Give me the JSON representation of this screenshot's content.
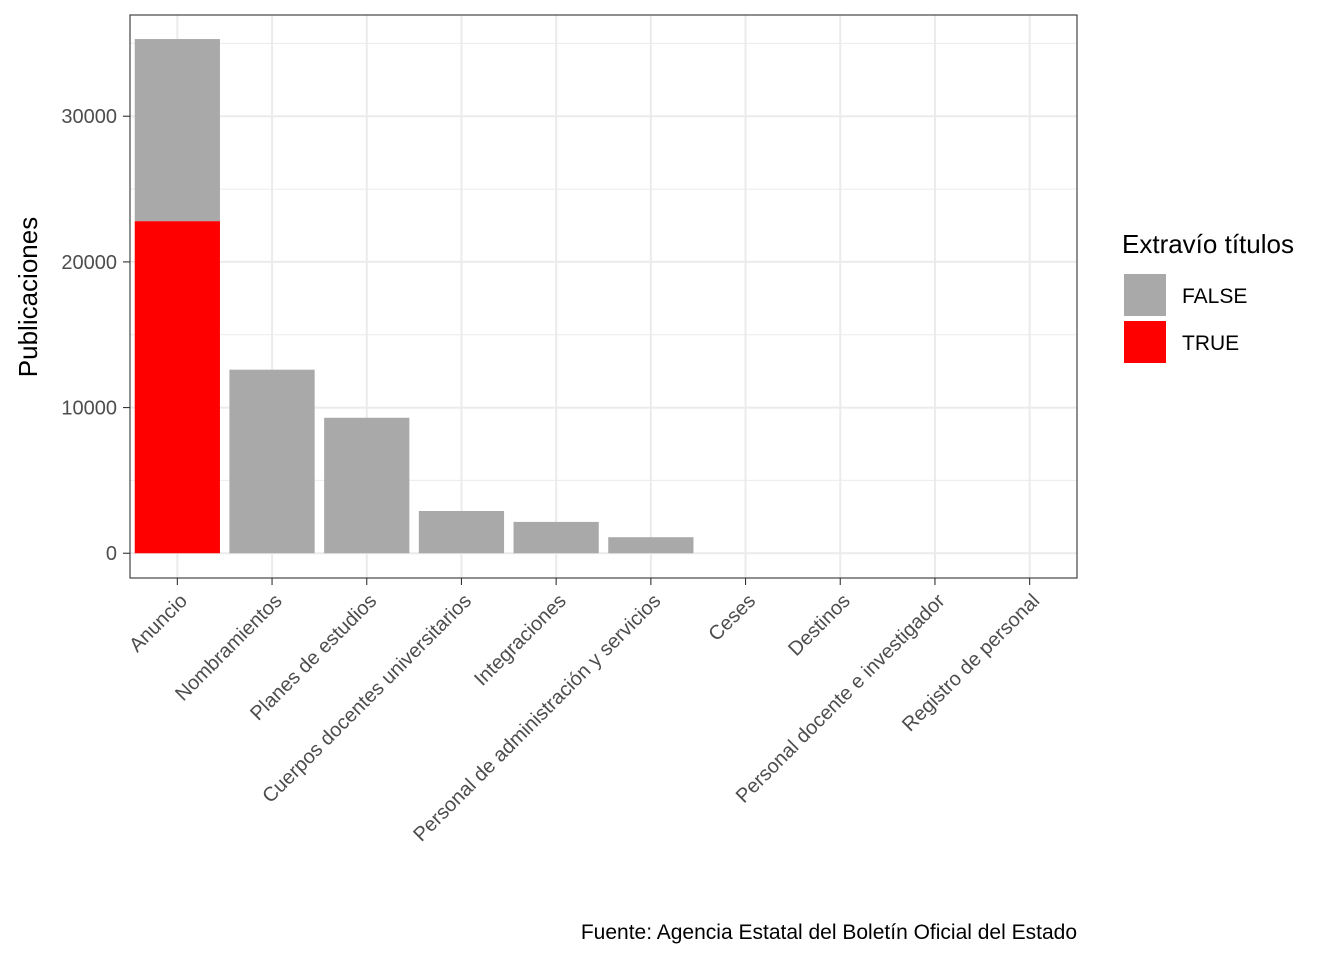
{
  "chart_data": {
    "type": "bar",
    "stacked": true,
    "ylabel": "Publicaciones",
    "xlabel": "",
    "categories": [
      "Anuncio",
      "Nombramientos",
      "Planes de estudios",
      "Cuerpos docentes universitarios",
      "Integraciones",
      "Personal de administración y servicios",
      "Ceses",
      "Destinos",
      "Personal docente e investigador",
      "Registro de personal"
    ],
    "series": [
      {
        "name": "TRUE",
        "color": "#FF0000",
        "values": [
          22800,
          0,
          0,
          0,
          0,
          0,
          0,
          0,
          0,
          0
        ]
      },
      {
        "name": "FALSE",
        "color": "#A9A9A9",
        "values": [
          12500,
          12600,
          9300,
          2900,
          2150,
          1100,
          0,
          0,
          0,
          0
        ]
      }
    ],
    "ylim": [
      -1700,
      36950
    ],
    "yticks": [
      0,
      10000,
      20000,
      30000
    ],
    "grid": true,
    "legend": {
      "title": "Extravío títulos",
      "position": "right",
      "items": [
        {
          "label": "FALSE",
          "color": "#A9A9A9"
        },
        {
          "label": "TRUE",
          "color": "#FF0000"
        }
      ]
    },
    "caption": "Fuente: Agencia Estatal del Boletín Oficial del Estado"
  }
}
